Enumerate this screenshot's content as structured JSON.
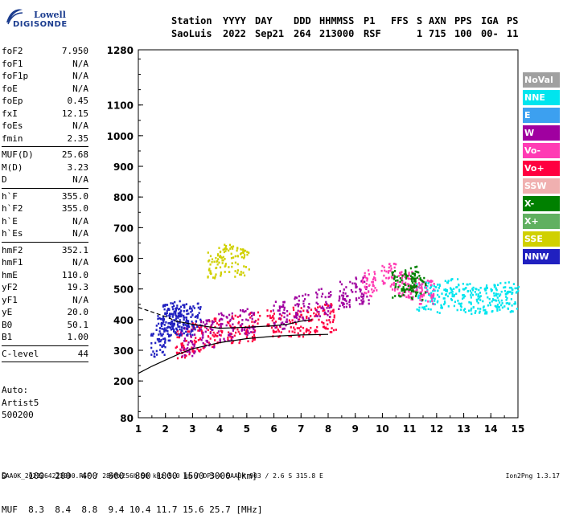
{
  "logo": {
    "brand_line1": "Lowell",
    "brand_line2": "DIGISONDE"
  },
  "header": {
    "labels": [
      "Station",
      "YYYY",
      "DAY",
      "DDD",
      "HHMMSS",
      "P1",
      "FFS",
      "S",
      "AXN",
      "PPS",
      "IGA",
      "PS"
    ],
    "values": [
      "SaoLuis",
      "2022",
      "Sep21",
      "264",
      "213000",
      "RSF",
      "",
      "1",
      "715",
      "100",
      "00-",
      "11"
    ]
  },
  "params_group1": [
    {
      "k": "foF2",
      "v": "7.950"
    },
    {
      "k": "foF1",
      "v": "N/A"
    },
    {
      "k": "foF1p",
      "v": "N/A"
    },
    {
      "k": "foE",
      "v": "N/A"
    },
    {
      "k": "foEp",
      "v": "0.45"
    },
    {
      "k": "fxI",
      "v": "12.15"
    },
    {
      "k": "foEs",
      "v": "N/A"
    },
    {
      "k": "fmin",
      "v": "2.35"
    }
  ],
  "params_group2": [
    {
      "k": "MUF(D)",
      "v": "25.68"
    },
    {
      "k": "M(D)",
      "v": "3.23"
    },
    {
      "k": "D",
      "v": "N/A"
    }
  ],
  "params_group3": [
    {
      "k": "h`F",
      "v": "355.0"
    },
    {
      "k": "h`F2",
      "v": "355.0"
    },
    {
      "k": "h`E",
      "v": "N/A"
    },
    {
      "k": "h`Es",
      "v": "N/A"
    }
  ],
  "params_group4": [
    {
      "k": "hmF2",
      "v": "352.1"
    },
    {
      "k": "hmF1",
      "v": "N/A"
    },
    {
      "k": "hmE",
      "v": "110.0"
    },
    {
      "k": "yF2",
      "v": "19.3"
    },
    {
      "k": "yF1",
      "v": "N/A"
    },
    {
      "k": "yE",
      "v": "20.0"
    },
    {
      "k": "B0",
      "v": "50.1"
    },
    {
      "k": "B1",
      "v": "1.00"
    }
  ],
  "params_group5": [
    {
      "k": "C-level",
      "v": "44"
    }
  ],
  "auto": {
    "line1": "Auto:",
    "line2": "Artist5",
    "line3": "500200"
  },
  "legend": [
    {
      "label": "NoVal",
      "color": "#a0a0a0"
    },
    {
      "label": "NNE",
      "color": "#00e5ee"
    },
    {
      "label": "E",
      "color": "#3ca0f0"
    },
    {
      "label": "W",
      "color": "#a000a0"
    },
    {
      "label": "Vo-",
      "color": "#ff3cb4"
    },
    {
      "label": "Vo+",
      "color": "#ff0040"
    },
    {
      "label": "SSW",
      "color": "#f0b0b0"
    },
    {
      "label": "X-",
      "color": "#008000"
    },
    {
      "label": "X+",
      "color": "#60b060"
    },
    {
      "label": "SSE",
      "color": "#d0d000"
    },
    {
      "label": "NNW",
      "color": "#2020c0"
    }
  ],
  "dist_table": {
    "row1_label": "D",
    "row1_values": "100  200  400  600  800 1000 1500 3000",
    "row1_unit": "[km]",
    "row2_label": "MUF",
    "row2_values": "8.3  8.4  8.8  9.4 10.4 11.7 15.6 25.7",
    "row2_unit": "[MHz]"
  },
  "footer": {
    "left": "SAA0K_2022264213000.RSF / 280fx256h 50 kHz 5.0 km / DPS-4 SAA0K 903 / 2.6 S 315.8 E",
    "right": "Ion2Png 1.3.17"
  },
  "chart_data": {
    "type": "scatter",
    "title": "",
    "xlabel": "",
    "ylabel": "",
    "xlim": [
      1,
      15
    ],
    "ylim": [
      80,
      1280
    ],
    "x_ticks": [
      1,
      2,
      3,
      4,
      5,
      6,
      7,
      8,
      9,
      10,
      11,
      12,
      13,
      14,
      15
    ],
    "y_ticks": [
      80,
      200,
      300,
      400,
      500,
      600,
      700,
      800,
      900,
      1000,
      1100,
      1280
    ],
    "grid": false,
    "legend_placement": "right",
    "series": [
      {
        "color": "#ff0040",
        "points": [
          [
            2.6,
            320
          ],
          [
            3.2,
            345
          ],
          [
            3.8,
            360
          ],
          [
            4.5,
            372
          ],
          [
            5.2,
            380
          ],
          [
            6.0,
            388
          ],
          [
            6.8,
            395
          ],
          [
            7.4,
            400
          ],
          [
            8.0,
            410
          ]
        ]
      },
      {
        "color": "#a000a0",
        "points": [
          [
            2.8,
            330
          ],
          [
            3.5,
            360
          ],
          [
            4.2,
            380
          ],
          [
            5.0,
            400
          ],
          [
            6.2,
            420
          ],
          [
            7.0,
            440
          ],
          [
            7.8,
            460
          ],
          [
            8.6,
            480
          ],
          [
            9.2,
            500
          ]
        ]
      },
      {
        "color": "#2020c0",
        "points": [
          [
            1.7,
            330
          ],
          [
            1.9,
            380
          ],
          [
            2.1,
            410
          ],
          [
            2.3,
            395
          ],
          [
            2.5,
            420
          ],
          [
            2.7,
            400
          ],
          [
            3.0,
            410
          ]
        ]
      },
      {
        "color": "#00e5ee",
        "points": [
          [
            11.5,
            480
          ],
          [
            12.0,
            470
          ],
          [
            12.5,
            490
          ],
          [
            13.0,
            475
          ],
          [
            13.5,
            465
          ],
          [
            14.0,
            470
          ],
          [
            14.4,
            480
          ],
          [
            14.8,
            472
          ]
        ]
      },
      {
        "color": "#ff3cb4",
        "points": [
          [
            9.5,
            520
          ],
          [
            10.2,
            540
          ],
          [
            10.8,
            520
          ],
          [
            11.2,
            510
          ],
          [
            11.6,
            500
          ]
        ]
      },
      {
        "color": "#008000",
        "points": [
          [
            10.6,
            520
          ],
          [
            11.0,
            530
          ],
          [
            11.3,
            515
          ]
        ]
      },
      {
        "color": "#d0d000",
        "points": [
          [
            4.2,
            600
          ],
          [
            4.8,
            590
          ],
          [
            3.8,
            585
          ]
        ]
      }
    ],
    "trace_curves": [
      {
        "name": "",
        "style": "solid",
        "points": [
          [
            1.0,
            225
          ],
          [
            1.5,
            248
          ],
          [
            2.0,
            268
          ],
          [
            2.5,
            288
          ],
          [
            3.0,
            305
          ],
          [
            4.0,
            325
          ],
          [
            5.0,
            338
          ],
          [
            6.0,
            346
          ],
          [
            7.0,
            350
          ],
          [
            8.0,
            352
          ]
        ]
      },
      {
        "name": "",
        "style": "dashed",
        "points": [
          [
            1.0,
            440
          ],
          [
            1.5,
            425
          ],
          [
            2.0,
            410
          ],
          [
            2.4,
            395
          ]
        ]
      },
      {
        "name": "",
        "style": "solid",
        "points": [
          [
            2.4,
            395
          ],
          [
            3.0,
            385
          ],
          [
            3.5,
            378
          ],
          [
            4.0,
            372
          ],
          [
            5.0,
            375
          ],
          [
            6.0,
            380
          ],
          [
            6.5,
            385
          ],
          [
            7.0,
            395
          ],
          [
            7.4,
            400
          ]
        ]
      }
    ]
  }
}
